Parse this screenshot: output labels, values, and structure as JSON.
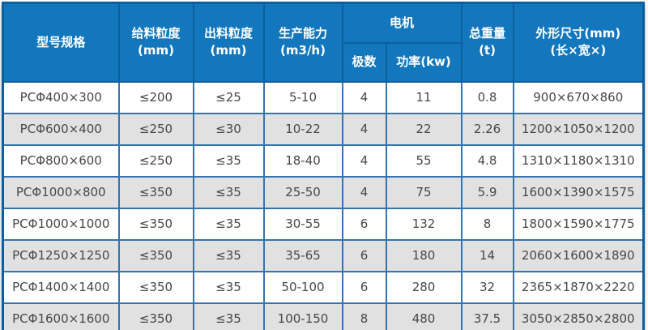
{
  "chart_data": {
    "type": "table",
    "columns": {
      "model": {
        "l1": "型号规格"
      },
      "feed_size": {
        "l1": "给料粒度",
        "l2": "(mm)"
      },
      "output_size": {
        "l1": "出料粒度",
        "l2": "(mm)"
      },
      "capacity": {
        "l1": "生产能力",
        "l2": "(m3/h)"
      },
      "motor": {
        "group": "电机",
        "poles": "极数",
        "power": "功率(kw)"
      },
      "total_weight": {
        "l1": "总重量",
        "l2": "(t)"
      },
      "dimensions": {
        "l1": "外形尺寸(mm)",
        "l2": "(长×宽×)"
      }
    },
    "rows": [
      [
        "PCΦ400×300",
        "≤200",
        "≤25",
        "5-10",
        "4",
        "11",
        "0.8",
        "900×670×860"
      ],
      [
        "PCΦ600×400",
        "≤250",
        "≤30",
        "10-22",
        "4",
        "22",
        "2.26",
        "1200×1050×1200"
      ],
      [
        "PCΦ800×600",
        "≤250",
        "≤35",
        "18-40",
        "4",
        "55",
        "4.8",
        "1310×1180×1310"
      ],
      [
        "PCΦ1000×800",
        "≤350",
        "≤35",
        "25-50",
        "4",
        "75",
        "5.9",
        "1600×1390×1575"
      ],
      [
        "PCΦ1000×1000",
        "≤350",
        "≤35",
        "30-55",
        "6",
        "132",
        "8",
        "1800×1590×1775"
      ],
      [
        "PCΦ1250×1250",
        "≤350",
        "≤35",
        "35-65",
        "6",
        "180",
        "14",
        "2060×1600×1890"
      ],
      [
        "PCΦ1400×1400",
        "≤350",
        "≤35",
        "50-100",
        "6",
        "280",
        "32",
        "2365×1870×2220"
      ],
      [
        "PCΦ1600×1600",
        "≤350",
        "≤35",
        "100-150",
        "8",
        "480",
        "37.5",
        "3050×2850×2800"
      ]
    ]
  },
  "colors": {
    "header_bg": "#1377bd",
    "header_border": "#0d5e9e",
    "body_border": "#3474b0",
    "row_alt_bg": "#e1e1e1",
    "body_text": "#474747",
    "header_text": "#ffffff"
  }
}
